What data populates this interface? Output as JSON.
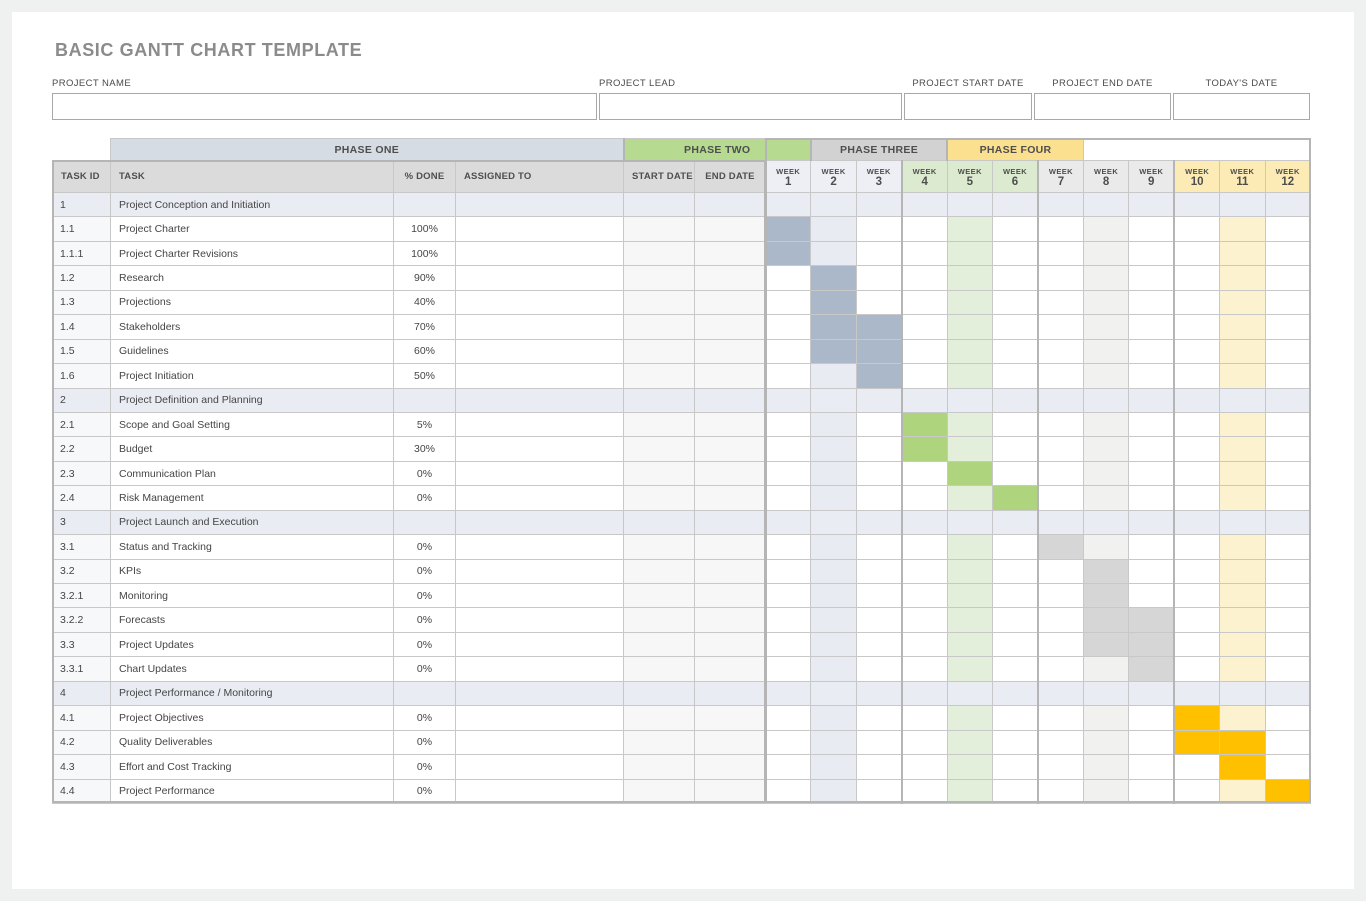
{
  "title": "BASIC GANTT CHART TEMPLATE",
  "fields": [
    {
      "label": "PROJECT NAME",
      "value": ""
    },
    {
      "label": "PROJECT LEAD",
      "value": ""
    },
    {
      "label": "PROJECT START DATE",
      "value": ""
    },
    {
      "label": "PROJECT END DATE",
      "value": ""
    },
    {
      "label": "TODAY'S DATE",
      "value": ""
    }
  ],
  "table": {
    "columns": [
      {
        "label": "TASK ID",
        "align": "left"
      },
      {
        "label": "TASK",
        "align": "left"
      },
      {
        "label": "% DONE",
        "align": "center"
      },
      {
        "label": "ASSIGNED TO",
        "align": "left"
      },
      {
        "label": "START DATE",
        "align": "center"
      },
      {
        "label": "END DATE",
        "align": "center"
      }
    ],
    "week_label": "WEEK",
    "phases": [
      {
        "name": "PHASE ONE",
        "weeks": [
          "1",
          "2",
          "3"
        ],
        "header_bg": "#d6dce4",
        "week_header_bg": "#edeff4"
      },
      {
        "name": "PHASE TWO",
        "weeks": [
          "4",
          "5",
          "6"
        ],
        "header_bg": "#b6da90",
        "week_header_bg": "#dcebd0"
      },
      {
        "name": "PHASE THREE",
        "weeks": [
          "7",
          "8",
          "9"
        ],
        "header_bg": "#d2d2d2",
        "week_header_bg": "#eaeaea"
      },
      {
        "name": "PHASE FOUR",
        "weeks": [
          "10",
          "11",
          "12"
        ],
        "header_bg": "#fbe18f",
        "week_header_bg": "#fcebb5"
      }
    ],
    "bar_colors": {
      "blue": "#abb8ca",
      "green": "#aed47d",
      "gray": "#d6d6d6",
      "orange": "#ffc000"
    },
    "stripe_columns": {
      "2": "#e8ebf1",
      "5": "#e3efdb",
      "8": "#f1f1ef",
      "11": "#fdf2d0"
    },
    "section_bg": "#e9ecf2",
    "rows": [
      {
        "id": "1",
        "task": "Project Conception and Initiation",
        "done": "",
        "section": true,
        "bars": {}
      },
      {
        "id": "1.1",
        "task": "Project Charter",
        "done": "100%",
        "section": false,
        "bars": {
          "1": "blue"
        }
      },
      {
        "id": "1.1.1",
        "task": "Project Charter Revisions",
        "done": "100%",
        "section": false,
        "bars": {
          "1": "blue"
        }
      },
      {
        "id": "1.2",
        "task": "Research",
        "done": "90%",
        "section": false,
        "bars": {
          "2": "blue"
        }
      },
      {
        "id": "1.3",
        "task": "Projections",
        "done": "40%",
        "section": false,
        "bars": {
          "2": "blue"
        }
      },
      {
        "id": "1.4",
        "task": "Stakeholders",
        "done": "70%",
        "section": false,
        "bars": {
          "2": "blue",
          "3": "blue"
        }
      },
      {
        "id": "1.5",
        "task": "Guidelines",
        "done": "60%",
        "section": false,
        "bars": {
          "2": "blue",
          "3": "blue"
        }
      },
      {
        "id": "1.6",
        "task": "Project Initiation",
        "done": "50%",
        "section": false,
        "bars": {
          "3": "blue"
        }
      },
      {
        "id": "2",
        "task": "Project Definition and Planning",
        "done": "",
        "section": true,
        "bars": {}
      },
      {
        "id": "2.1",
        "task": "Scope and Goal Setting",
        "done": "5%",
        "section": false,
        "bars": {
          "4": "green"
        }
      },
      {
        "id": "2.2",
        "task": "Budget",
        "done": "30%",
        "section": false,
        "bars": {
          "4": "green"
        }
      },
      {
        "id": "2.3",
        "task": "Communication Plan",
        "done": "0%",
        "section": false,
        "bars": {
          "5": "green"
        }
      },
      {
        "id": "2.4",
        "task": "Risk Management",
        "done": "0%",
        "section": false,
        "bars": {
          "6": "green"
        }
      },
      {
        "id": "3",
        "task": "Project Launch and Execution",
        "done": "",
        "section": true,
        "bars": {}
      },
      {
        "id": "3.1",
        "task": "Status and Tracking",
        "done": "0%",
        "section": false,
        "bars": {
          "7": "gray"
        }
      },
      {
        "id": "3.2",
        "task": "KPIs",
        "done": "0%",
        "section": false,
        "bars": {
          "8": "gray"
        }
      },
      {
        "id": "3.2.1",
        "task": "Monitoring",
        "done": "0%",
        "section": false,
        "bars": {
          "8": "gray"
        }
      },
      {
        "id": "3.2.2",
        "task": "Forecasts",
        "done": "0%",
        "section": false,
        "bars": {
          "8": "gray",
          "9": "gray"
        }
      },
      {
        "id": "3.3",
        "task": "Project Updates",
        "done": "0%",
        "section": false,
        "bars": {
          "8": "gray",
          "9": "gray"
        }
      },
      {
        "id": "3.3.1",
        "task": "Chart Updates",
        "done": "0%",
        "section": false,
        "bars": {
          "9": "gray"
        }
      },
      {
        "id": "4",
        "task": "Project Performance / Monitoring",
        "done": "",
        "section": true,
        "bars": {}
      },
      {
        "id": "4.1",
        "task": "Project Objectives",
        "done": "0%",
        "section": false,
        "bars": {
          "10": "orange"
        }
      },
      {
        "id": "4.2",
        "task": "Quality Deliverables",
        "done": "0%",
        "section": false,
        "bars": {
          "10": "orange",
          "11": "orange"
        }
      },
      {
        "id": "4.3",
        "task": "Effort and Cost Tracking",
        "done": "0%",
        "section": false,
        "bars": {
          "11": "orange"
        }
      },
      {
        "id": "4.4",
        "task": "Project Performance",
        "done": "0%",
        "section": false,
        "bars": {
          "12": "orange"
        }
      }
    ]
  }
}
